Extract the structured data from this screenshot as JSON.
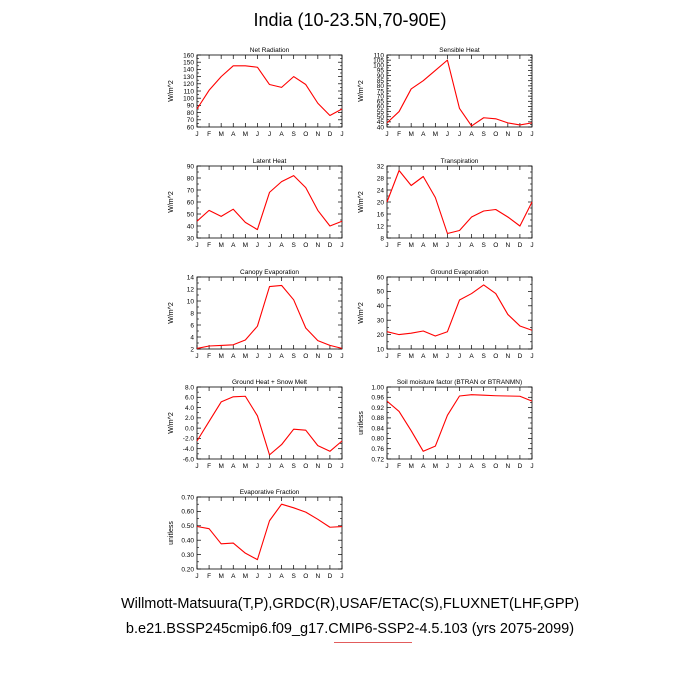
{
  "page": {
    "title": "India (10-23.5N,70-90E)",
    "footer_line1": "Willmott-Matsuura(T,P),GRDC(R),USAF/ETAC(S),FLUXNET(LHF,GPP)",
    "footer_line2": "b.e21.BSSP245cmip6.f09_g17.CMIP6-SSP2-4.5.103 (yrs 2075-2099)",
    "line_color": "#ff0000"
  },
  "chart_data": [
    {
      "type": "line",
      "title": "Net Radiation",
      "ylabel": "W/m^2",
      "x": [
        "J",
        "F",
        "M",
        "A",
        "M",
        "J",
        "J",
        "A",
        "S",
        "O",
        "N",
        "D",
        "J"
      ],
      "ylim": [
        60,
        160
      ],
      "yticks": [
        "60",
        "70",
        "80",
        "90",
        "100",
        "110",
        "120",
        "130",
        "140",
        "150",
        "160"
      ],
      "grid": false,
      "series": [
        {
          "values": [
            85,
            111,
            130,
            145,
            145,
            143,
            119,
            115,
            130,
            119,
            93,
            76,
            85
          ]
        }
      ]
    },
    {
      "type": "line",
      "title": "Sensible Heat",
      "ylabel": "W/m^2",
      "x": [
        "J",
        "F",
        "M",
        "A",
        "M",
        "J",
        "J",
        "A",
        "S",
        "O",
        "N",
        "D",
        "J"
      ],
      "ylim": [
        40,
        110
      ],
      "yticks": [
        "40",
        "45",
        "50",
        "55",
        "60",
        "65",
        "70",
        "75",
        "80",
        "85",
        "90",
        "95",
        "100",
        "105",
        "110"
      ],
      "grid": false,
      "series": [
        {
          "values": [
            44,
            55,
            77,
            85,
            95,
            105,
            58,
            41,
            49,
            48,
            44,
            42,
            44
          ]
        }
      ]
    },
    {
      "type": "line",
      "title": "Latent Heat",
      "ylabel": "W/m^2",
      "x": [
        "J",
        "F",
        "M",
        "A",
        "M",
        "J",
        "J",
        "A",
        "S",
        "O",
        "N",
        "D",
        "J"
      ],
      "ylim": [
        30,
        90
      ],
      "yticks": [
        "30",
        "40",
        "50",
        "60",
        "70",
        "80",
        "90"
      ],
      "grid": false,
      "series": [
        {
          "values": [
            44,
            53,
            48,
            54,
            43,
            37,
            68,
            77,
            82,
            72,
            53,
            40,
            44
          ]
        }
      ]
    },
    {
      "type": "line",
      "title": "Transpiration",
      "ylabel": "W/m^2",
      "x": [
        "J",
        "F",
        "M",
        "A",
        "M",
        "J",
        "J",
        "A",
        "S",
        "O",
        "N",
        "D",
        "J"
      ],
      "ylim": [
        8,
        32
      ],
      "yticks": [
        "8",
        "12",
        "16",
        "20",
        "24",
        "28",
        "32"
      ],
      "grid": false,
      "series": [
        {
          "values": [
            20,
            30.5,
            25.5,
            28.5,
            21.5,
            9.5,
            10.5,
            15,
            17,
            17.5,
            15,
            12,
            20
          ]
        }
      ]
    },
    {
      "type": "line",
      "title": "Canopy Evaporation",
      "ylabel": "W/m^2",
      "x": [
        "J",
        "F",
        "M",
        "A",
        "M",
        "J",
        "J",
        "A",
        "S",
        "O",
        "N",
        "D",
        "J"
      ],
      "ylim": [
        2,
        14
      ],
      "yticks": [
        "2",
        "4",
        "6",
        "8",
        "10",
        "12",
        "14"
      ],
      "grid": false,
      "series": [
        {
          "values": [
            2.1,
            2.5,
            2.6,
            2.7,
            3.5,
            5.8,
            12.4,
            12.6,
            10.2,
            5.5,
            3.4,
            2.6,
            2.1
          ]
        }
      ]
    },
    {
      "type": "line",
      "title": "Ground Evaporation",
      "ylabel": "W/m^2",
      "x": [
        "J",
        "F",
        "M",
        "A",
        "M",
        "J",
        "J",
        "A",
        "S",
        "O",
        "N",
        "D",
        "J"
      ],
      "ylim": [
        10,
        60
      ],
      "yticks": [
        "10",
        "20",
        "30",
        "40",
        "50",
        "60"
      ],
      "grid": false,
      "series": [
        {
          "values": [
            22,
            20,
            21,
            22.5,
            19,
            22,
            44,
            48.5,
            54.5,
            48.5,
            34,
            26,
            23
          ]
        }
      ]
    },
    {
      "type": "line",
      "title": "Ground Heat + Snow Melt",
      "ylabel": "W/m^2",
      "x": [
        "J",
        "F",
        "M",
        "A",
        "M",
        "J",
        "J",
        "A",
        "S",
        "O",
        "N",
        "D",
        "J"
      ],
      "ylim": [
        -6,
        8
      ],
      "yticks": [
        "-6.0",
        "-4.0",
        "-2.0",
        "0.0",
        "2.0",
        "4.0",
        "6.0",
        "8.0"
      ],
      "grid": false,
      "series": [
        {
          "values": [
            -2.5,
            1.3,
            5.1,
            6.1,
            6.2,
            2.4,
            -5.2,
            -3.2,
            -0.2,
            -0.4,
            -3.4,
            -4.5,
            -2.5
          ]
        }
      ]
    },
    {
      "type": "line",
      "title": "Soil moisture factor (BTRAN or BTRANMN)",
      "ylabel": "unitless",
      "x": [
        "J",
        "F",
        "M",
        "A",
        "M",
        "J",
        "J",
        "A",
        "S",
        "O",
        "N",
        "D",
        "J"
      ],
      "ylim": [
        0.72,
        1.0
      ],
      "yticks": [
        "0.72",
        "0.76",
        "0.80",
        "0.84",
        "0.88",
        "0.92",
        "0.96",
        "1.00"
      ],
      "grid": false,
      "series": [
        {
          "values": [
            0.945,
            0.905,
            0.83,
            0.75,
            0.77,
            0.89,
            0.965,
            0.97,
            0.968,
            0.966,
            0.965,
            0.964,
            0.945
          ]
        }
      ]
    },
    {
      "type": "line",
      "title": "Evaporative Fraction",
      "ylabel": "unitless",
      "x": [
        "J",
        "F",
        "M",
        "A",
        "M",
        "J",
        "J",
        "A",
        "S",
        "O",
        "N",
        "D",
        "J"
      ],
      "ylim": [
        0.2,
        0.7
      ],
      "yticks": [
        "0.20",
        "0.30",
        "0.40",
        "0.50",
        "0.60",
        "0.70"
      ],
      "grid": false,
      "series": [
        {
          "values": [
            0.495,
            0.48,
            0.375,
            0.38,
            0.31,
            0.265,
            0.535,
            0.65,
            0.625,
            0.595,
            0.545,
            0.49,
            0.495
          ]
        }
      ]
    }
  ]
}
